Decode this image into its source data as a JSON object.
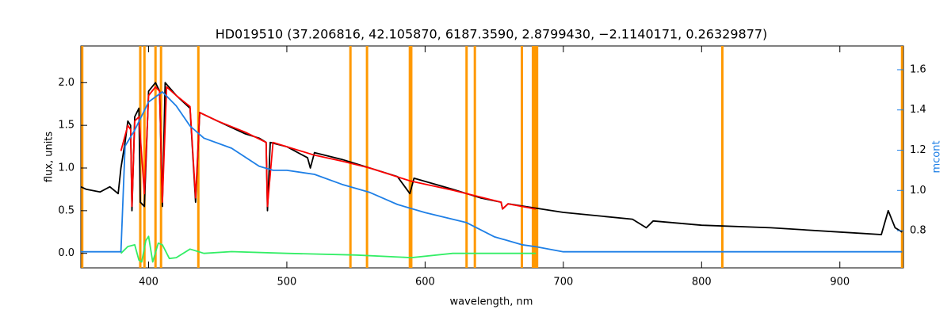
{
  "chart_data": {
    "type": "line",
    "title": "HD019510    (37.206816, 42.105870, 6187.3590, 2.8799430, −2.1140171, 0.26329877)",
    "x_label": "wavelength, nm",
    "y_label": "flux, units",
    "y2_label": "mcont",
    "xlim": [
      351,
      946
    ],
    "ylim": [
      -0.17,
      2.43
    ],
    "y2lim": [
      0.615,
      1.718
    ],
    "xticks": [
      400,
      500,
      600,
      700,
      800,
      900
    ],
    "yticks": [
      {
        "value": 0,
        "label": "0.0"
      },
      0.5,
      {
        "value": 1,
        "label": "1.0"
      },
      1.5,
      {
        "value": 2,
        "label": "2.0"
      }
    ],
    "y2ticks": [
      0.8,
      {
        "value": 1,
        "label": "1.0"
      },
      1.2,
      1.4,
      1.6
    ],
    "y2_color": "#1e7fe6",
    "vline_color": "#ff9900",
    "vlines": [
      352,
      394,
      397,
      405,
      409,
      436,
      546,
      558,
      589,
      590,
      630,
      636,
      670,
      678,
      679,
      680,
      681,
      815,
      945
    ],
    "series": [
      {
        "color": "#000000",
        "x": [
          351,
          355,
          365,
          372,
          378,
          380,
          383,
          385,
          387,
          388,
          390,
          393,
          394,
          397,
          400,
          405,
          408,
          410,
          412,
          420,
          430,
          434,
          437,
          450,
          470,
          480,
          485,
          486,
          488,
          500,
          515,
          517,
          520,
          540,
          560,
          580,
          589,
          592,
          620,
          640,
          655,
          656,
          660,
          680,
          700,
          750,
          760,
          765,
          800,
          850,
          900,
          930,
          935,
          940,
          945
        ],
        "values": [
          0.78,
          0.75,
          0.72,
          0.78,
          0.7,
          1.0,
          1.3,
          1.55,
          1.5,
          0.5,
          1.6,
          1.7,
          0.6,
          0.55,
          1.9,
          2.0,
          1.9,
          0.55,
          2.0,
          1.85,
          1.7,
          0.6,
          1.65,
          1.55,
          1.4,
          1.35,
          1.3,
          0.5,
          1.3,
          1.25,
          1.12,
          1.0,
          1.18,
          1.1,
          1.0,
          0.9,
          0.7,
          0.88,
          0.75,
          0.65,
          0.6,
          0.52,
          0.58,
          0.53,
          0.48,
          0.4,
          0.3,
          0.38,
          0.33,
          0.3,
          0.25,
          0.22,
          0.5,
          0.3,
          0.25
        ]
      },
      {
        "color": "#ff0000",
        "x": [
          380,
          385,
          387,
          388,
          390,
          393,
          397,
          400,
          405,
          408,
          410,
          413,
          420,
          430,
          434,
          437,
          450,
          470,
          485,
          486,
          490,
          500,
          520,
          540,
          560,
          589,
          620,
          655,
          656,
          660,
          680
        ],
        "values": [
          1.2,
          1.5,
          1.45,
          0.55,
          1.55,
          1.6,
          0.7,
          1.85,
          1.95,
          1.9,
          0.6,
          1.95,
          1.85,
          1.72,
          0.65,
          1.65,
          1.55,
          1.42,
          1.3,
          0.55,
          1.3,
          1.25,
          1.15,
          1.08,
          1.0,
          0.85,
          0.74,
          0.6,
          0.52,
          0.58,
          0.52
        ]
      },
      {
        "color": "#1e7fe6",
        "axis": "y2",
        "x": [
          351,
          380,
          383,
          390,
          400,
          410,
          420,
          430,
          440,
          460,
          480,
          490,
          500,
          520,
          540,
          560,
          580,
          600,
          630,
          650,
          670,
          680,
          700,
          800,
          945
        ],
        "values": [
          0.695,
          0.695,
          1.22,
          1.3,
          1.44,
          1.49,
          1.42,
          1.32,
          1.26,
          1.21,
          1.12,
          1.1,
          1.1,
          1.08,
          1.03,
          0.99,
          0.93,
          0.89,
          0.84,
          0.77,
          0.73,
          0.72,
          0.695,
          0.695,
          0.695
        ]
      },
      {
        "color": "#33ee66",
        "x": [
          380,
          385,
          390,
          393,
          395,
          398,
          400,
          403,
          407,
          410,
          415,
          420,
          430,
          440,
          460,
          500,
          550,
          590,
          620,
          680
        ],
        "values": [
          0.0,
          0.08,
          0.1,
          -0.08,
          -0.1,
          0.15,
          0.2,
          -0.1,
          0.12,
          0.1,
          -0.06,
          -0.05,
          0.05,
          0.0,
          0.02,
          0.0,
          -0.02,
          -0.05,
          0.0,
          0.0
        ]
      }
    ]
  }
}
